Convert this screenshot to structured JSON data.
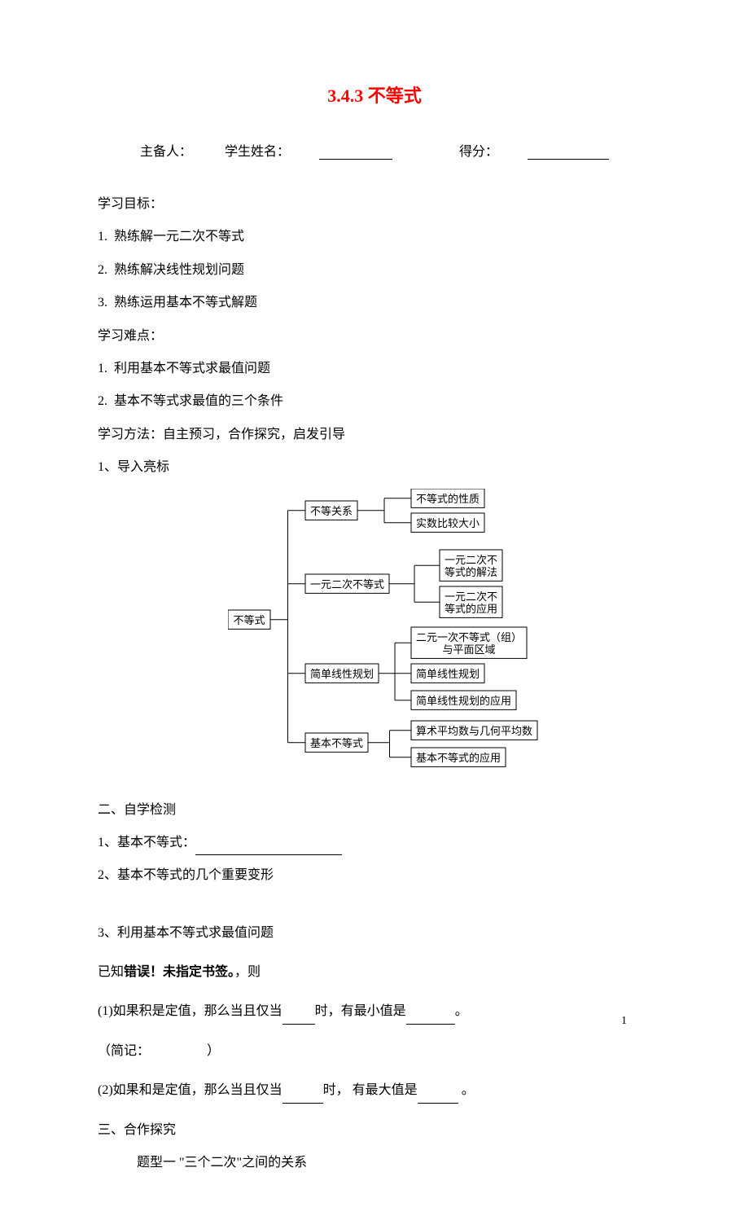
{
  "title": "3.4.3 不等式",
  "info": {
    "preparer_label": "主备人：",
    "student_label": "学生姓名：",
    "score_label": "得分："
  },
  "objectives": {
    "header": "学习目标：",
    "items": [
      "熟练解一元二次不等式",
      "熟练解决线性规划问题",
      "熟练运用基本不等式解题"
    ]
  },
  "difficulties": {
    "header": "学习难点：",
    "items": [
      "利用基本不等式求最值问题",
      "基本不等式求最值的三个条件"
    ]
  },
  "method": "学习方法：自主预习，合作探究，启发引导",
  "sec1": {
    "label": "1、导入亮标"
  },
  "tree": {
    "root": "不等式",
    "branches": [
      {
        "label": "不等关系",
        "children": [
          "不等式的性质",
          "实数比较大小"
        ]
      },
      {
        "label": "一元二次不等式",
        "children": [
          "一元二次不\n等式的解法",
          "一元二次不\n等式的应用"
        ]
      },
      {
        "label": "简单线性规划",
        "children": [
          "二元一次不等式（组）\n与平面区域",
          "简单线性规划",
          "简单线性规划的应用"
        ]
      },
      {
        "label": "基本不等式",
        "children": [
          "算术平均数与几何平均数",
          "基本不等式的应用"
        ]
      }
    ]
  },
  "sec2": {
    "label": "二、自学检测",
    "q1": "1、基本不等式：",
    "q2": "2、基本不等式的几个重要变形",
    "q3": "3、利用基本不等式求最值问题"
  },
  "known": "已知",
  "errorText": "错误！未指定书签。",
  "thenText": "，则",
  "q3_1a": "(1)如果积是定值，那么当且仅当",
  "q3_1b": "时，有最小值是",
  "q3_1c": "。",
  "note_open": "（简记：",
  "note_close": "）",
  "q3_2a": "(2)如果和是定值，那么当且仅当",
  "q3_2b": "时，  有最大值是",
  "q3_2c": " 。",
  "sec3": {
    "label": "三、合作探究",
    "sub": "题型一  \"三个二次\"之间的关系"
  },
  "page_num": "1"
}
